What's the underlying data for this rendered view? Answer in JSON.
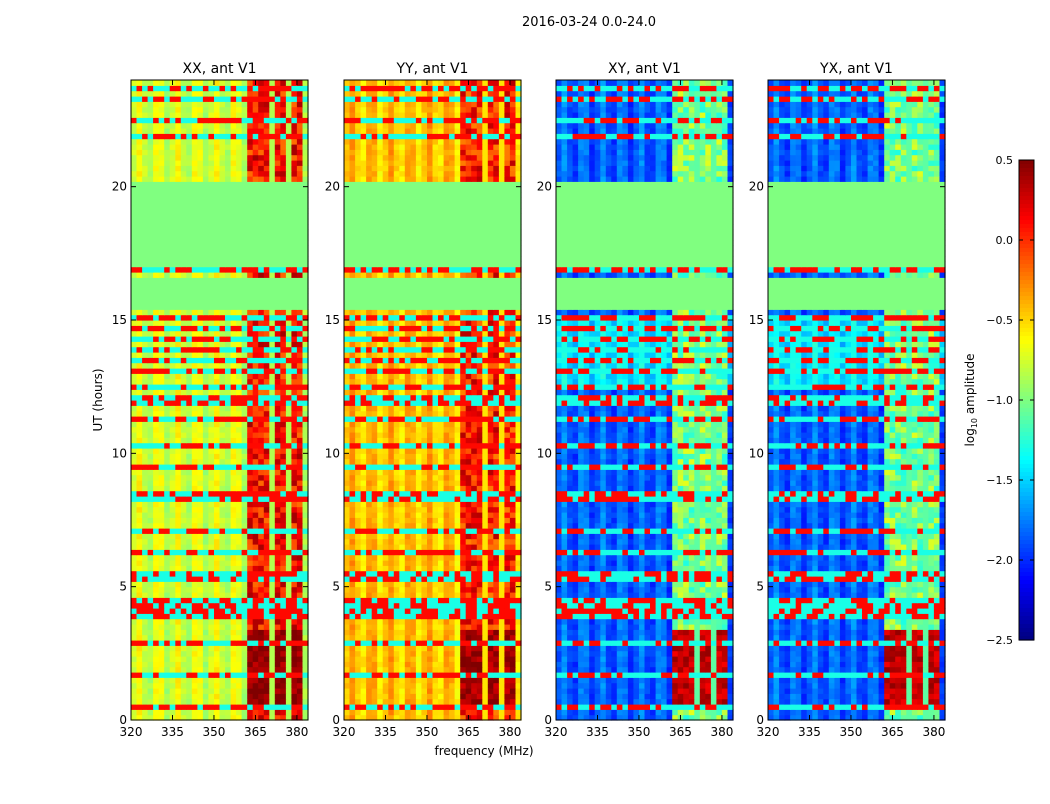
{
  "chart_data": {
    "type": "heatmap",
    "title": "2016-03-24 0.0-24.0",
    "xlabel": "frequency (MHz)",
    "ylabel": "UT (hours)",
    "xlim": [
      320,
      384
    ],
    "ylim": [
      0,
      24
    ],
    "xticks": [
      320,
      335,
      350,
      365,
      380
    ],
    "yticks": [
      0,
      5,
      10,
      15,
      20
    ],
    "colorbar": {
      "label": "log10 amplitude",
      "label_main": "log",
      "label_sub": "10",
      "label_tail": " amplitude",
      "range": [
        -2.5,
        0.5
      ],
      "ticks": [
        "0.5",
        "0.0",
        "−0.5",
        "−1.0",
        "−1.5",
        "−2.0",
        "−2.5"
      ],
      "tick_values": [
        0.5,
        0.0,
        -0.5,
        -1.0,
        -1.5,
        -2.0,
        -2.5
      ],
      "colormap": "jet"
    },
    "flagged_hours": [
      [
        15.3,
        16.5
      ],
      [
        17.0,
        20.2
      ]
    ],
    "flag_value": -1.0,
    "rfi_band_mhz": [
      363,
      381
    ],
    "rfi_gap_mhz": [
      371,
      377.5
    ],
    "strong_rfi_hours": [
      0.6,
      3.3
    ],
    "line_hours": [
      0.6,
      1.6,
      2.9,
      3.9,
      4.2,
      4.4,
      4.6,
      5.3,
      5.6,
      6.3,
      7.2,
      8.4,
      8.6,
      9.5,
      10.3,
      11.3,
      11.8,
      12.1,
      12.4,
      13.1,
      13.5,
      13.9,
      14.2,
      14.6,
      15.1,
      16.9,
      21.8,
      22.4,
      23.3,
      23.6
    ],
    "panels": [
      {
        "title": "XX, ant V1",
        "base_level": -0.75,
        "rfi_level": 0.1,
        "strong_level": 0.45
      },
      {
        "title": "YY, ant V1",
        "base_level": -0.45,
        "rfi_level": 0.05,
        "strong_level": 0.4
      },
      {
        "title": "XY, ant V1",
        "base_level": -1.85,
        "rfi_level": -1.0,
        "strong_level": 0.3
      },
      {
        "title": "YX, ant V1",
        "base_level": -1.85,
        "rfi_level": -1.0,
        "strong_level": 0.3
      }
    ]
  }
}
